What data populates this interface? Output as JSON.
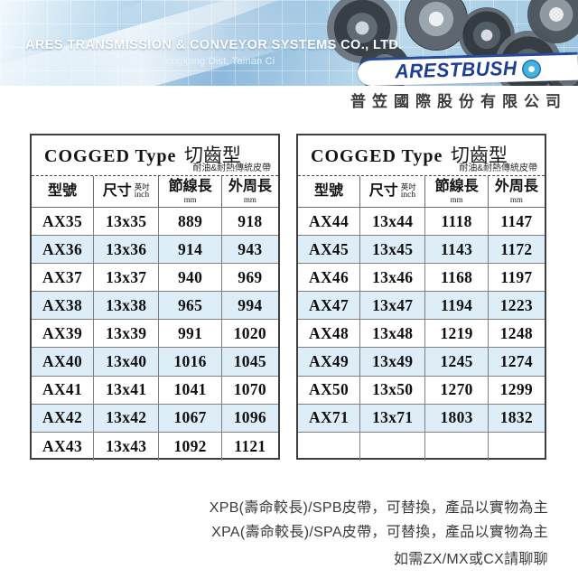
{
  "header": {
    "company_name": "ARES TRANSMISSION & CONVEYOR SYSTEMS CO., LTD.",
    "address": "No.30, Ln 68, Wangxing Rd., Yongkang Dist, Tainan Ci",
    "logo_text": "ARESTBUSH",
    "company_cn": "普笠國際股份有限公司"
  },
  "tables": [
    {
      "title_en": "COGGED Type",
      "title_cn": "切齒型",
      "subtitle": "耐油&耐熱傳統皮帶",
      "columns": {
        "model": "型號",
        "size": "尺寸",
        "size_unit_cn": "英吋",
        "size_unit_en": "inch",
        "pitch": "節線長",
        "pitch_unit": "mm",
        "outer": "外周長",
        "outer_unit": "mm"
      },
      "rows": [
        [
          "AX35",
          "13x35",
          "889",
          "918"
        ],
        [
          "AX36",
          "13x36",
          "914",
          "943"
        ],
        [
          "AX37",
          "13x37",
          "940",
          "969"
        ],
        [
          "AX38",
          "13x38",
          "965",
          "994"
        ],
        [
          "AX39",
          "13x39",
          "991",
          "1020"
        ],
        [
          "AX40",
          "13x40",
          "1016",
          "1045"
        ],
        [
          "AX41",
          "13x41",
          "1041",
          "1070"
        ],
        [
          "AX42",
          "13x42",
          "1067",
          "1096"
        ],
        [
          "AX43",
          "13x43",
          "1092",
          "1121"
        ]
      ]
    },
    {
      "title_en": "COGGED Type",
      "title_cn": "切齒型",
      "subtitle": "耐油&耐熱傳統皮帶",
      "columns": {
        "model": "型號",
        "size": "尺寸",
        "size_unit_cn": "英吋",
        "size_unit_en": "inch",
        "pitch": "節線長",
        "pitch_unit": "mm",
        "outer": "外周長",
        "outer_unit": "mm"
      },
      "rows": [
        [
          "AX44",
          "13x44",
          "1118",
          "1147"
        ],
        [
          "AX45",
          "13x45",
          "1143",
          "1172"
        ],
        [
          "AX46",
          "13x46",
          "1168",
          "1197"
        ],
        [
          "AX47",
          "13x47",
          "1194",
          "1223"
        ],
        [
          "AX48",
          "13x48",
          "1219",
          "1248"
        ],
        [
          "AX49",
          "13x49",
          "1245",
          "1274"
        ],
        [
          "AX50",
          "13x50",
          "1270",
          "1299"
        ],
        [
          "AX71",
          "13x71",
          "1803",
          "1832"
        ],
        [
          "",
          "",
          "",
          ""
        ]
      ]
    }
  ],
  "footer": {
    "line1": "XPB(壽命較長)/SPB皮帶，可替換，產品以實物為主",
    "line2": "XPA(壽命較長)/SPA皮帶，可替換，產品以實物為主",
    "line3": "如需ZX/MX或CX請聊聊"
  },
  "colors": {
    "accent_blue": "#1e3d94",
    "banner_blue": "#9cc5df",
    "row_alt": "#ddeef9"
  }
}
